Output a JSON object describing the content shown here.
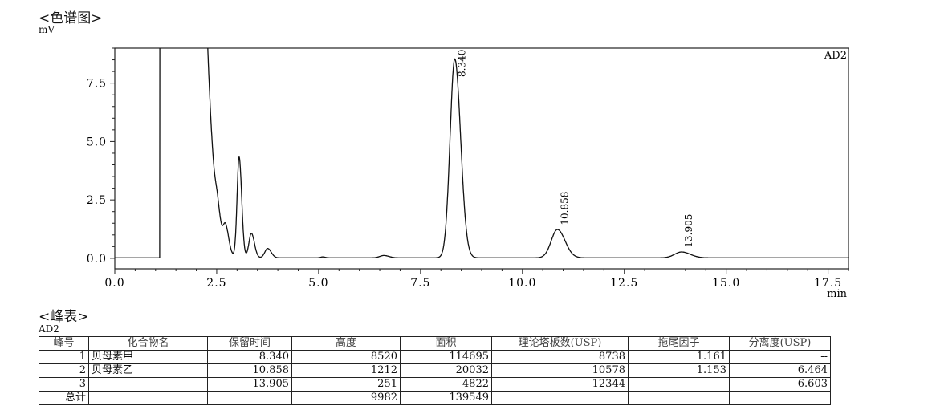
{
  "header": {
    "title": "<色谱图>",
    "unit": "mV"
  },
  "chart_data": {
    "type": "line",
    "title": "",
    "xlabel": "min",
    "ylabel": "mV",
    "channel_label": "AD2",
    "xlim": [
      0,
      18.0
    ],
    "ylim": [
      -0.45,
      9.0
    ],
    "x_ticks": [
      "0.0",
      "2.5",
      "5.0",
      "7.5",
      "10.0",
      "12.5",
      "15.0",
      "17.5"
    ],
    "y_ticks": [
      "0.0",
      "2.5",
      "5.0",
      "7.5"
    ],
    "grid": false,
    "baseline": 0.02,
    "peaks": [
      {
        "rt": 1.55,
        "height": 60,
        "sigma": 0.3
      },
      {
        "rt": 2.52,
        "height": 0.6,
        "sigma": 0.05
      },
      {
        "rt": 2.72,
        "height": 1.0,
        "sigma": 0.06
      },
      {
        "rt": 3.05,
        "height": 4.3,
        "sigma": 0.05
      },
      {
        "rt": 3.35,
        "height": 1.05,
        "sigma": 0.06
      },
      {
        "rt": 3.75,
        "height": 0.4,
        "sigma": 0.07
      },
      {
        "rt": 5.1,
        "height": 0.04,
        "sigma": 0.05
      },
      {
        "rt": 6.6,
        "height": 0.1,
        "sigma": 0.1
      },
      {
        "rt": 8.34,
        "height": 8.52,
        "sigma": 0.115
      },
      {
        "rt": 10.858,
        "height": 1.212,
        "sigma": 0.15
      },
      {
        "rt": 13.905,
        "height": 0.251,
        "sigma": 0.17
      }
    ],
    "labels": [
      {
        "text": "8.340",
        "rt": 8.34,
        "height": 8.52
      },
      {
        "text": "10.858",
        "rt": 10.858,
        "height": 1.212
      },
      {
        "text": "13.905",
        "rt": 13.905,
        "height": 0.251
      }
    ]
  },
  "peak_table": {
    "title": "<峰表>",
    "channel": "AD2",
    "columns": [
      "峰号",
      "化合物名",
      "保留时间",
      "高度",
      "面积",
      "理论塔板数(USP)",
      "拖尾因子",
      "分离度(USP)"
    ],
    "rows": [
      [
        "1",
        "贝母素甲",
        "8.340",
        "8520",
        "114695",
        "8738",
        "1.161",
        "--"
      ],
      [
        "2",
        "贝母素乙",
        "10.858",
        "1212",
        "20032",
        "10578",
        "1.153",
        "6.464"
      ],
      [
        "3",
        "",
        "13.905",
        "251",
        "4822",
        "12344",
        "--",
        "6.603"
      ],
      [
        "总计",
        "",
        "",
        "9982",
        "139549",
        "",
        "",
        ""
      ]
    ]
  }
}
